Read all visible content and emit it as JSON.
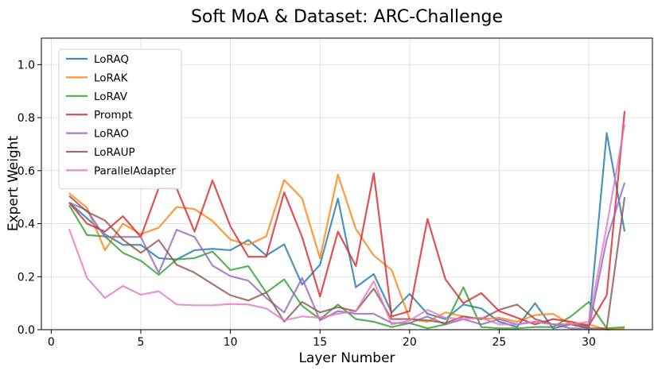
{
  "chart_data": {
    "type": "line",
    "title": "Soft MoA & Dataset: ARC-Challenge",
    "xlabel": "Layer Number",
    "ylabel": "Expert Weight",
    "xlim": [
      -0.55,
      33.55
    ],
    "ylim": [
      0.0,
      1.1
    ],
    "xticks": [
      0,
      5,
      10,
      15,
      20,
      25,
      30
    ],
    "yticks": [
      0.0,
      0.2,
      0.4,
      0.6,
      0.8,
      1.0
    ],
    "xtick_labels": [
      "0",
      "5",
      "10",
      "15",
      "20",
      "25",
      "30"
    ],
    "ytick_labels": [
      "0.0",
      "0.2",
      "0.4",
      "0.6",
      "0.8",
      "1.0"
    ],
    "grid": true,
    "legend_position": "top-left",
    "x": [
      1,
      2,
      3,
      4,
      5,
      6,
      7,
      8,
      9,
      10,
      11,
      12,
      13,
      14,
      15,
      16,
      17,
      18,
      19,
      20,
      21,
      22,
      23,
      24,
      25,
      26,
      27,
      28,
      29,
      30,
      31,
      32
    ],
    "series": [
      {
        "name": "LoRAQ",
        "color": "#1f77b4",
        "values": [
          0.48,
          0.42,
          0.36,
          0.32,
          0.32,
          0.27,
          0.265,
          0.3,
          0.305,
          0.3,
          0.338,
          0.28,
          0.322,
          0.17,
          0.245,
          0.495,
          0.16,
          0.21,
          0.065,
          0.135,
          0.06,
          0.04,
          0.095,
          0.08,
          0.03,
          0.01,
          0.1,
          0.005,
          0.02,
          0.01,
          0.742,
          0.37
        ]
      },
      {
        "name": "LoRAK",
        "color": "#ff7f0e",
        "values": [
          0.515,
          0.46,
          0.3,
          0.4,
          0.36,
          0.385,
          0.463,
          0.455,
          0.41,
          0.34,
          0.32,
          0.352,
          0.565,
          0.495,
          0.27,
          0.585,
          0.38,
          0.28,
          0.225,
          0.04,
          0.03,
          0.065,
          0.05,
          0.04,
          0.045,
          0.03,
          0.055,
          0.06,
          0.02,
          0.02,
          0.0,
          0.005
        ]
      },
      {
        "name": "LoRAV",
        "color": "#2ca02c",
        "values": [
          0.47,
          0.357,
          0.352,
          0.29,
          0.26,
          0.207,
          0.265,
          0.27,
          0.295,
          0.225,
          0.24,
          0.14,
          0.19,
          0.09,
          0.04,
          0.095,
          0.04,
          0.03,
          0.01,
          0.025,
          0.005,
          0.02,
          0.16,
          0.01,
          0.005,
          0.005,
          0.01,
          0.01,
          0.05,
          0.105,
          0.005,
          0.01
        ]
      },
      {
        "name": "Prompt",
        "color": "#d62728",
        "values": [
          0.48,
          0.4,
          0.37,
          0.428,
          0.35,
          0.535,
          0.533,
          0.37,
          0.563,
          0.39,
          0.275,
          0.275,
          0.518,
          0.35,
          0.125,
          0.37,
          0.24,
          0.59,
          0.05,
          0.07,
          0.418,
          0.19,
          0.1,
          0.138,
          0.07,
          0.045,
          0.02,
          0.04,
          0.03,
          0.015,
          0.13,
          0.825
        ]
      },
      {
        "name": "LoRAO",
        "color": "#9467bd",
        "values": [
          0.48,
          0.45,
          0.35,
          0.35,
          0.35,
          0.215,
          0.377,
          0.35,
          0.242,
          0.202,
          0.185,
          0.12,
          0.065,
          0.195,
          0.035,
          0.07,
          0.06,
          0.06,
          0.025,
          0.025,
          0.05,
          0.02,
          0.04,
          0.02,
          0.04,
          0.02,
          0.03,
          0.02,
          0.005,
          0.005,
          0.34,
          0.555
        ]
      },
      {
        "name": "LoRAUP",
        "color": "#8c564b",
        "values": [
          0.505,
          0.445,
          0.412,
          0.34,
          0.29,
          0.338,
          0.245,
          0.215,
          0.172,
          0.13,
          0.11,
          0.14,
          0.03,
          0.105,
          0.065,
          0.085,
          0.07,
          0.155,
          0.04,
          0.04,
          0.035,
          0.025,
          0.05,
          0.04,
          0.075,
          0.095,
          0.04,
          0.02,
          0.02,
          0.005,
          0.005,
          0.5
        ]
      },
      {
        "name": "ParallelAdapter",
        "color": "#e377c2",
        "values": [
          0.38,
          0.195,
          0.12,
          0.165,
          0.132,
          0.145,
          0.095,
          0.092,
          0.092,
          0.097,
          0.095,
          0.08,
          0.035,
          0.05,
          0.045,
          0.06,
          0.07,
          0.183,
          0.02,
          0.035,
          0.075,
          0.045,
          0.04,
          0.045,
          0.02,
          0.02,
          0.03,
          0.02,
          0.02,
          0.03,
          0.39,
          0.775
        ]
      }
    ]
  }
}
